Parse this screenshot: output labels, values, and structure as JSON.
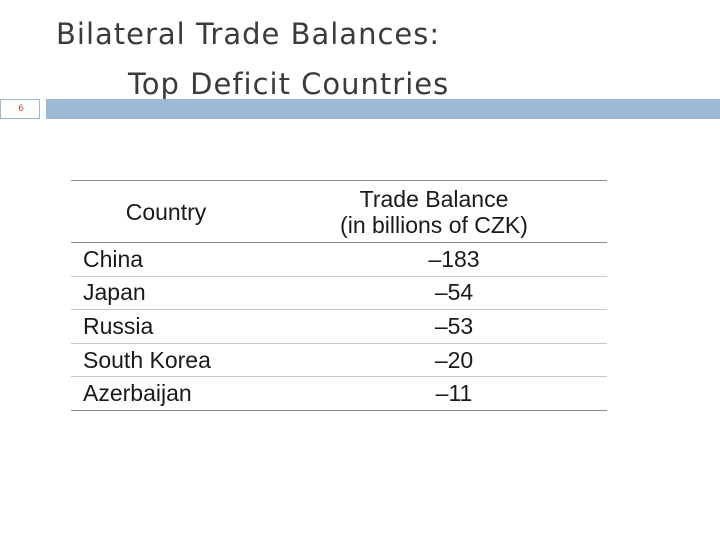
{
  "slide": {
    "title_line1": "Bilateral Trade Balances:",
    "title_line2": "Top Deficit Countries",
    "number": "6",
    "accent_color": "#9dbad5",
    "number_color": "#c0504d"
  },
  "table": {
    "header_country": "Country",
    "header_balance_line1": "Trade Balance",
    "header_balance_line2": "(in billions of CZK)",
    "rows": [
      {
        "country": "China",
        "balance": "–183"
      },
      {
        "country": "Japan",
        "balance": "–54"
      },
      {
        "country": "Russia",
        "balance": "–53"
      },
      {
        "country": "South Korea",
        "balance": "–20"
      },
      {
        "country": "Azerbaijan",
        "balance": "–11"
      }
    ]
  }
}
